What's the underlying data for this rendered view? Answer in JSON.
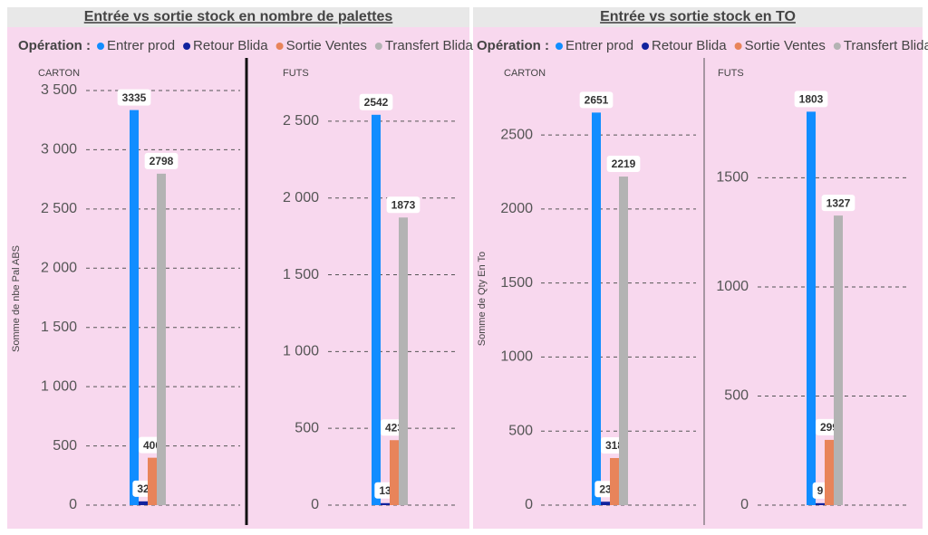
{
  "panels": [
    {
      "title": "Entrée vs sortie stock en nombre de palettes",
      "legend_title": "Opération :"
    },
    {
      "title": "Entrée vs sortie stock en TO",
      "legend_title": "Opération :"
    }
  ],
  "chart_data": [
    {
      "type": "bar",
      "title": "CARTON",
      "y_label": "Somme de nbe Pal ABS",
      "ylim": [
        0,
        3500
      ],
      "yticks": [
        0,
        500,
        {
          "value": 1000,
          "label": "1 000"
        },
        {
          "value": 1500,
          "label": "1 500"
        },
        {
          "value": 2000,
          "label": "2 000"
        },
        {
          "value": 2500,
          "label": "2 500"
        },
        {
          "value": 3000,
          "label": "3 000"
        },
        {
          "value": 3500,
          "label": "3 500"
        }
      ],
      "grid": true,
      "series": [
        {
          "name": "Entrer prod",
          "color": "#118dff",
          "values": [
            3335
          ]
        },
        {
          "name": "Retour Blida",
          "color": "#12239e",
          "values": [
            32
          ]
        },
        {
          "name": "Sortie Ventes",
          "color": "#e8845a",
          "values": [
            400
          ]
        },
        {
          "name": "Transfert Blida",
          "color": "#b3b3b3",
          "values": [
            2798
          ]
        }
      ]
    },
    {
      "type": "bar",
      "title": "FUTS",
      "ylim": [
        0,
        2700
      ],
      "yticks": [
        0,
        500,
        {
          "value": 1000,
          "label": "1 000"
        },
        {
          "value": 1500,
          "label": "1 500"
        },
        {
          "value": 2000,
          "label": "2 000"
        },
        {
          "value": 2500,
          "label": "2 500"
        }
      ],
      "grid": true,
      "series": [
        {
          "name": "Entrer prod",
          "color": "#118dff",
          "values": [
            2542
          ]
        },
        {
          "name": "Retour Blida",
          "color": "#12239e",
          "values": [
            13
          ]
        },
        {
          "name": "Sortie Ventes",
          "color": "#e8845a",
          "values": [
            423
          ]
        },
        {
          "name": "Transfert Blida",
          "color": "#b3b3b3",
          "values": [
            1873
          ]
        }
      ]
    },
    {
      "type": "bar",
      "title": "CARTON",
      "y_label": "Somme de Qty En To",
      "ylim": [
        0,
        2800
      ],
      "yticks": [
        0,
        500,
        1000,
        1500,
        2000,
        2500
      ],
      "grid": true,
      "series": [
        {
          "name": "Entrer prod",
          "color": "#118dff",
          "values": [
            2651
          ]
        },
        {
          "name": "Retour Blida",
          "color": "#12239e",
          "values": [
            23
          ]
        },
        {
          "name": "Sortie Ventes",
          "color": "#e8845a",
          "values": [
            318
          ]
        },
        {
          "name": "Transfert Blida",
          "color": "#b3b3b3",
          "values": [
            2219
          ]
        }
      ]
    },
    {
      "type": "bar",
      "title": "FUTS",
      "ylim": [
        0,
        1900
      ],
      "yticks": [
        0,
        500,
        1000,
        1500
      ],
      "grid": true,
      "series": [
        {
          "name": "Entrer prod",
          "color": "#118dff",
          "values": [
            1803
          ]
        },
        {
          "name": "Retour Blida",
          "color": "#12239e",
          "values": [
            9
          ]
        },
        {
          "name": "Sortie Ventes",
          "color": "#e8845a",
          "values": [
            299
          ]
        },
        {
          "name": "Transfert Blida",
          "color": "#b3b3b3",
          "values": [
            1327
          ]
        }
      ]
    }
  ]
}
